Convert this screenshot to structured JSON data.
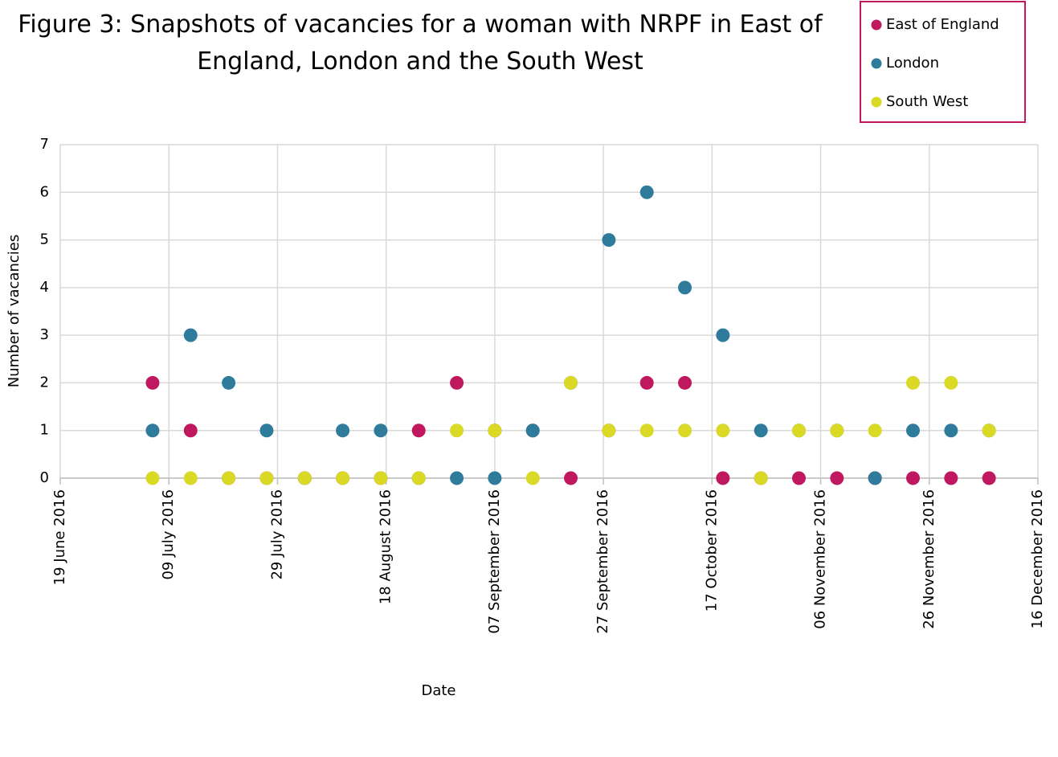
{
  "chart_data": {
    "type": "scatter",
    "title": "Figure 3: Snapshots of vacancies for a woman with NRPF in East of England, London and the South West",
    "x_label": "Date",
    "y_label": "Number of vacancies",
    "x": [
      "2016-07-06",
      "2016-07-13",
      "2016-07-20",
      "2016-07-27",
      "2016-08-03",
      "2016-08-10",
      "2016-08-17",
      "2016-08-24",
      "2016-08-31",
      "2016-09-07",
      "2016-09-14",
      "2016-09-21",
      "2016-09-28",
      "2016-10-05",
      "2016-10-12",
      "2016-10-19",
      "2016-10-26",
      "2016-11-02",
      "2016-11-09",
      "2016-11-16",
      "2016-11-23",
      "2016-11-30",
      "2016-12-07"
    ],
    "series": [
      {
        "name": "East of England",
        "color": "#c0185f",
        "values": [
          2,
          1,
          0,
          0,
          0,
          0,
          0,
          1,
          2,
          1,
          1,
          0,
          1,
          2,
          2,
          0,
          0,
          0,
          0,
          0,
          0,
          0,
          0
        ]
      },
      {
        "name": "London",
        "color": "#2e7b9c",
        "values": [
          1,
          3,
          2,
          1,
          0,
          1,
          1,
          0,
          0,
          0,
          1,
          2,
          5,
          6,
          4,
          3,
          1,
          1,
          1,
          0,
          1,
          1,
          1
        ]
      },
      {
        "name": "South West",
        "color": "#d9d926",
        "values": [
          0,
          0,
          0,
          0,
          0,
          0,
          0,
          0,
          1,
          1,
          0,
          2,
          1,
          1,
          1,
          1,
          0,
          1,
          1,
          1,
          2,
          2,
          1
        ]
      }
    ],
    "xlim": [
      "2016-06-19",
      "2016-12-16"
    ],
    "xticks": [
      {
        "value": "2016-06-19",
        "label": "19 June 2016"
      },
      {
        "value": "2016-07-09",
        "label": "09 July 2016"
      },
      {
        "value": "2016-07-29",
        "label": "29 July 2016"
      },
      {
        "value": "2016-08-18",
        "label": "18 August 2016"
      },
      {
        "value": "2016-09-07",
        "label": "07 September 2016"
      },
      {
        "value": "2016-09-27",
        "label": "27 September 2016"
      },
      {
        "value": "2016-10-17",
        "label": "17 October 2016"
      },
      {
        "value": "2016-11-06",
        "label": "06 November 2016"
      },
      {
        "value": "2016-11-26",
        "label": "26 November 2016"
      },
      {
        "value": "2016-12-16",
        "label": "16 December 2016"
      }
    ],
    "ylim": [
      0,
      7
    ],
    "yticks": [
      0,
      1,
      2,
      3,
      4,
      5,
      6,
      7
    ],
    "grid": true,
    "legend": "top-right",
    "legend_border_color": "#c0185f"
  }
}
